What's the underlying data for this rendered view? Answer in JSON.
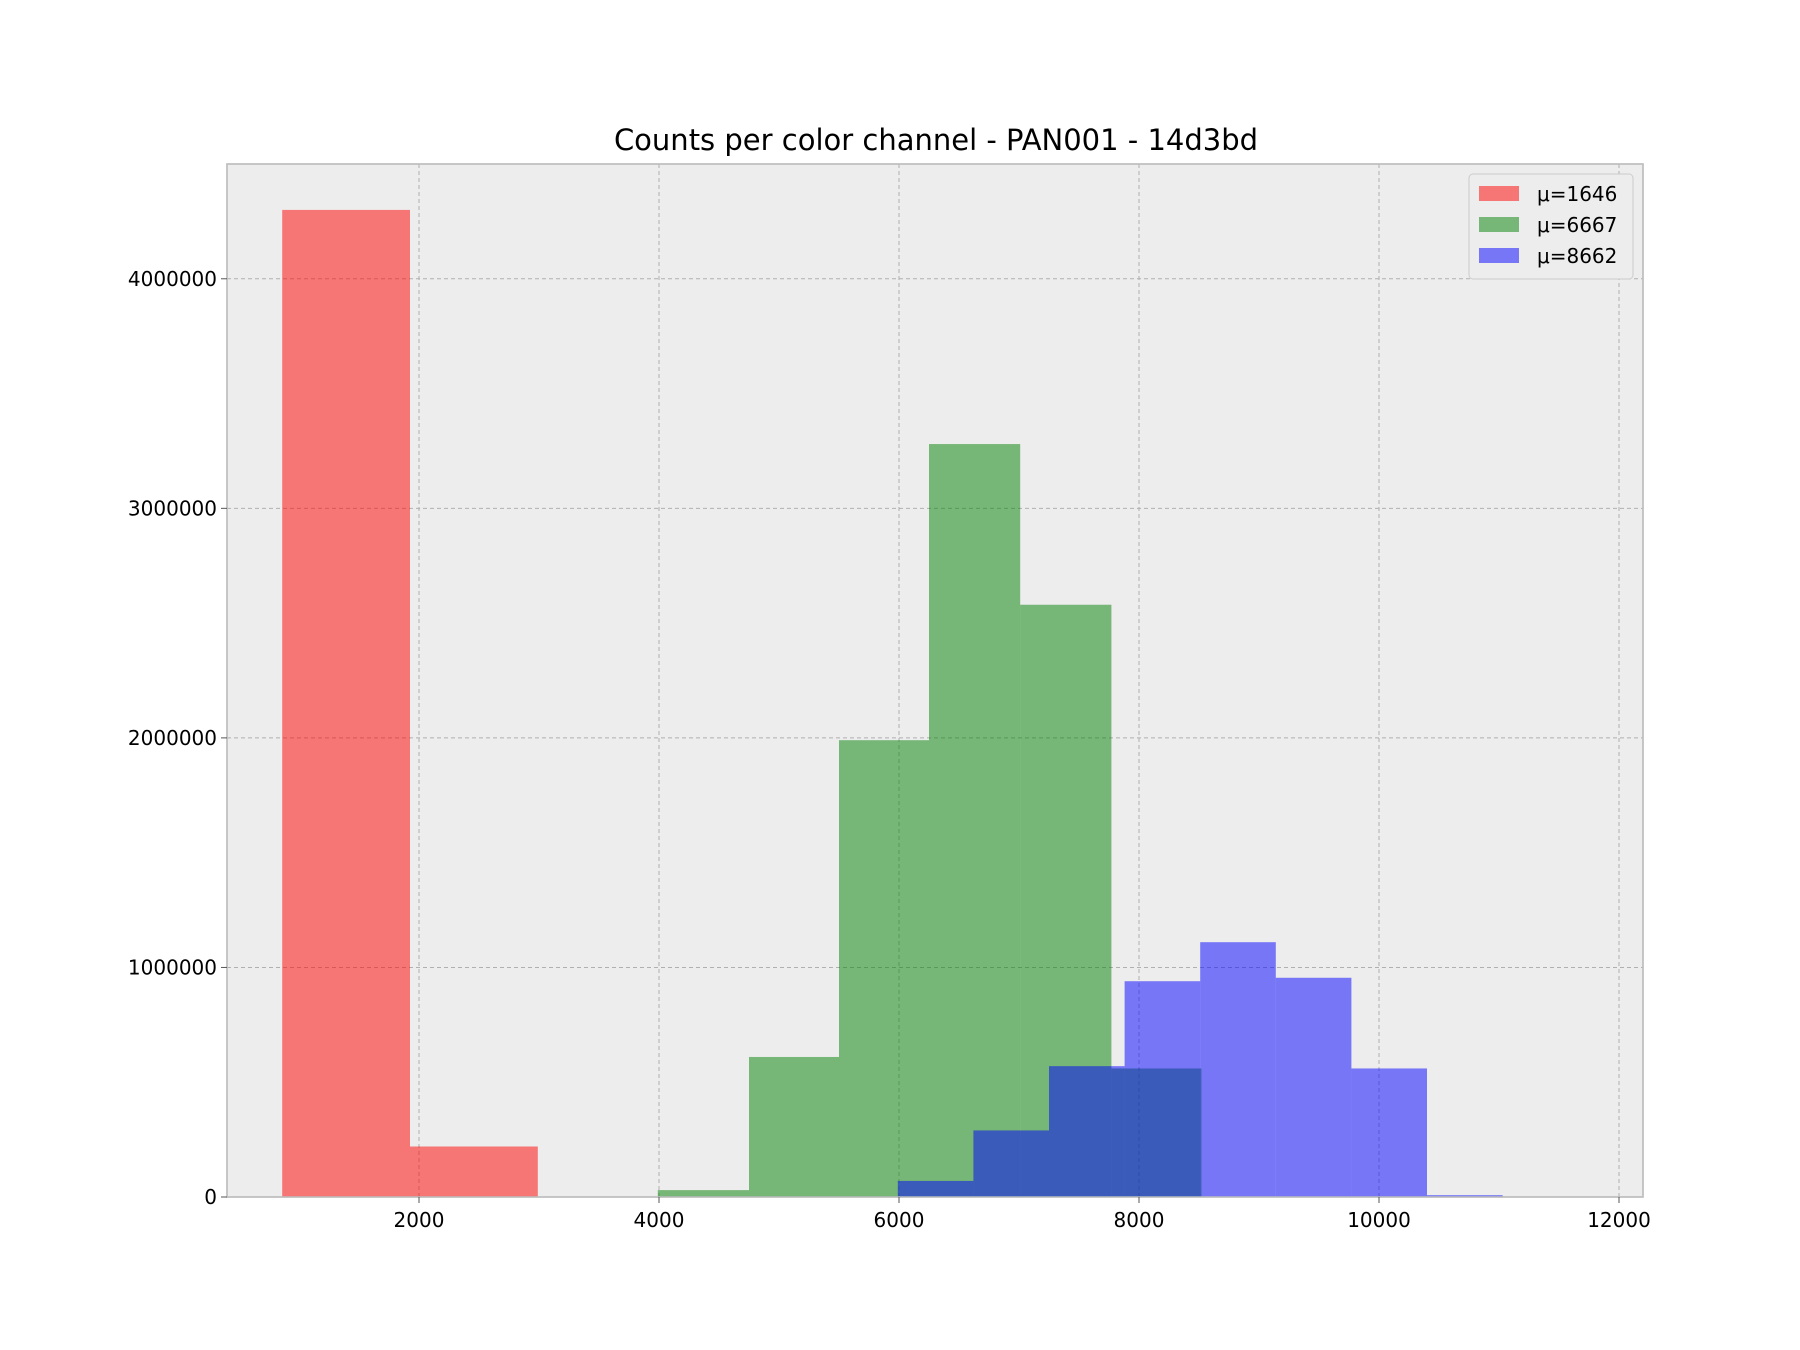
{
  "chart_data": {
    "type": "bar",
    "title": "Counts per color channel - PAN001 - 14d3bd",
    "xlabel": "",
    "ylabel": "",
    "xlim": [
      400,
      12200
    ],
    "ylim": [
      0,
      4500000
    ],
    "xticks": [
      2000,
      4000,
      6000,
      8000,
      10000,
      12000
    ],
    "xtick_labels": [
      "2000",
      "4000",
      "6000",
      "8000",
      "10000",
      "12000"
    ],
    "yticks": [
      0,
      1000000,
      2000000,
      3000000,
      4000000
    ],
    "ytick_labels": [
      "0",
      "1000000",
      "2000000",
      "3000000",
      "4000000"
    ],
    "grid": true,
    "legend_position": "top-right",
    "series": [
      {
        "name": "μ=1646",
        "color": "#ff0000",
        "opacity": 0.5,
        "bins": [
          {
            "x0": 860,
            "x1": 1925,
            "count": 4300000
          },
          {
            "x0": 1925,
            "x1": 2990,
            "count": 220000
          }
        ]
      },
      {
        "name": "μ=6667",
        "color": "#008000",
        "opacity": 0.5,
        "bins": [
          {
            "x0": 3990,
            "x1": 4750,
            "count": 30000
          },
          {
            "x0": 4750,
            "x1": 5500,
            "count": 610000
          },
          {
            "x0": 5500,
            "x1": 6250,
            "count": 1990000
          },
          {
            "x0": 6250,
            "x1": 7010,
            "count": 3280000
          },
          {
            "x0": 7010,
            "x1": 7770,
            "count": 2580000
          },
          {
            "x0": 7770,
            "x1": 8520,
            "count": 560000
          }
        ]
      },
      {
        "name": "μ=8662",
        "color": "#0000ff",
        "opacity": 0.5,
        "bins": [
          {
            "x0": 5990,
            "x1": 6620,
            "count": 70000
          },
          {
            "x0": 6620,
            "x1": 7250,
            "count": 290000
          },
          {
            "x0": 7250,
            "x1": 7880,
            "count": 570000
          },
          {
            "x0": 7880,
            "x1": 8510,
            "count": 940000
          },
          {
            "x0": 8510,
            "x1": 9140,
            "count": 1110000
          },
          {
            "x0": 9140,
            "x1": 9770,
            "count": 955000
          },
          {
            "x0": 9770,
            "x1": 10400,
            "count": 560000
          },
          {
            "x0": 10400,
            "x1": 11030,
            "count": 8000
          }
        ]
      }
    ]
  }
}
